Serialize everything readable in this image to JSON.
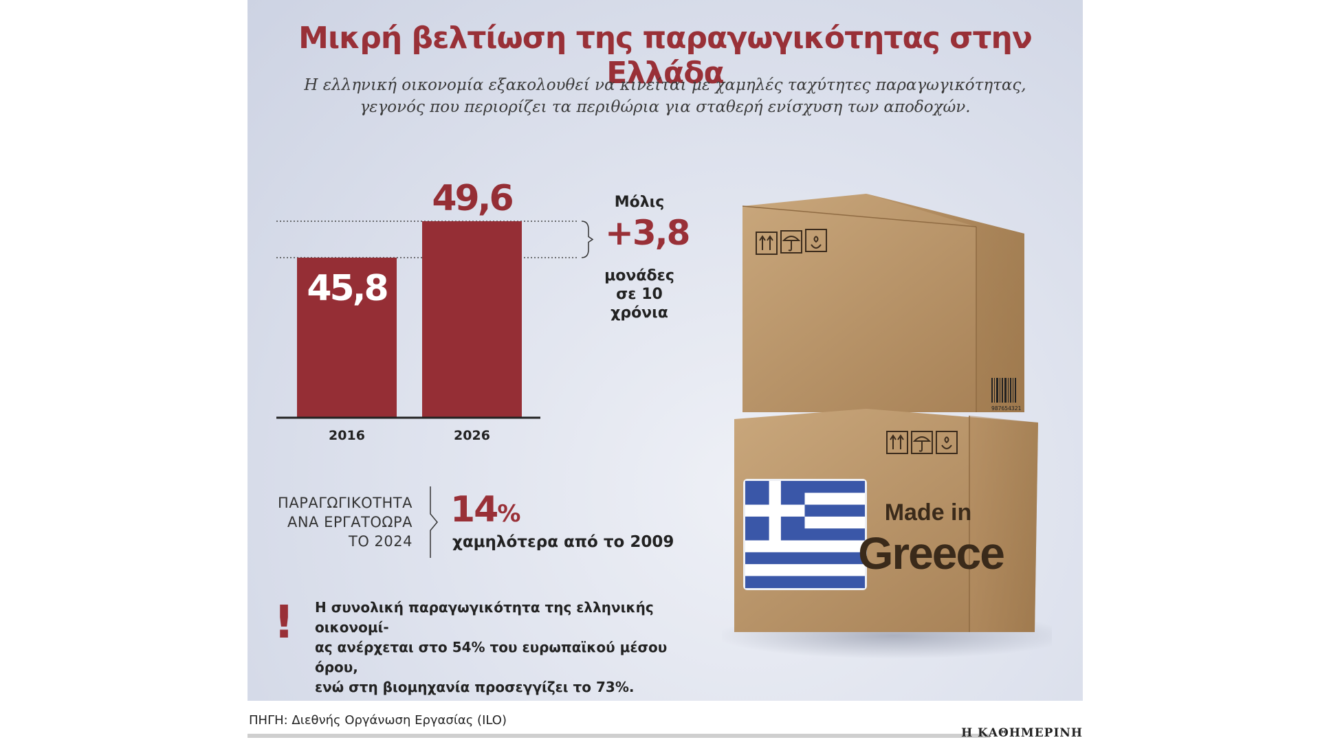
{
  "header": {
    "title": "Μικρή βελτίωση της παραγωγικότητας στην Ελλάδα",
    "subtitle_line1": "Η ελληνική οικονομία εξακολουθεί να κινείται με χαμηλές ταχύτητες παραγωγικότητας,",
    "subtitle_line2": "γεγονός που περιορίζει τα περιθώρια για σταθερή ενίσχυση των αποδοχών."
  },
  "chart_data": {
    "type": "bar",
    "categories": [
      "2016",
      "2026"
    ],
    "values": [
      45.8,
      49.6
    ],
    "value_labels": [
      "45,8",
      "49,6"
    ],
    "ylim": [
      0,
      50
    ],
    "grid": false,
    "colors": {
      "bar": "#952e35",
      "axis": "#222222",
      "dotted": "#444444"
    }
  },
  "change_note": {
    "top": "Μόλις",
    "value": "+3,8",
    "line1": "μονάδες",
    "line2": "σε 10",
    "line3": "χρόνια"
  },
  "productivity": {
    "label_line1": "ΠΑΡΑΓΩΓΙΚΟΤΗΤΑ",
    "label_line2": "ΑΝΑ ΕΡΓΑΤΟΩΡΑ",
    "label_line3": "ΤΟ 2024",
    "value": "14",
    "unit": "%",
    "caption": "χαμηλότερα από το 2009"
  },
  "alert": {
    "symbol": "!",
    "line1": "Η συνολική παραγωγικότητα της ελληνικής οικονομί-",
    "line2": "ας ανέρχεται στο 54% του ευρωπαϊκού μέσου όρου,",
    "line3": "ενώ στη βιομηχανία προσεγγίζει το 73%."
  },
  "illustration": {
    "box_text_line1": "Made in",
    "box_text_line2": "Greece",
    "barcode_number": "987654321",
    "icons": [
      "arrows-up-icon",
      "umbrella-icon",
      "hands-icon"
    ],
    "flag": "greek-flag"
  },
  "footer": {
    "source": "ΠΗΓΗ: Διεθνής Οργάνωση Εργασίας (ILO)",
    "brand": "Η ΚΑΘΗΜΕΡΙΝΗ"
  }
}
